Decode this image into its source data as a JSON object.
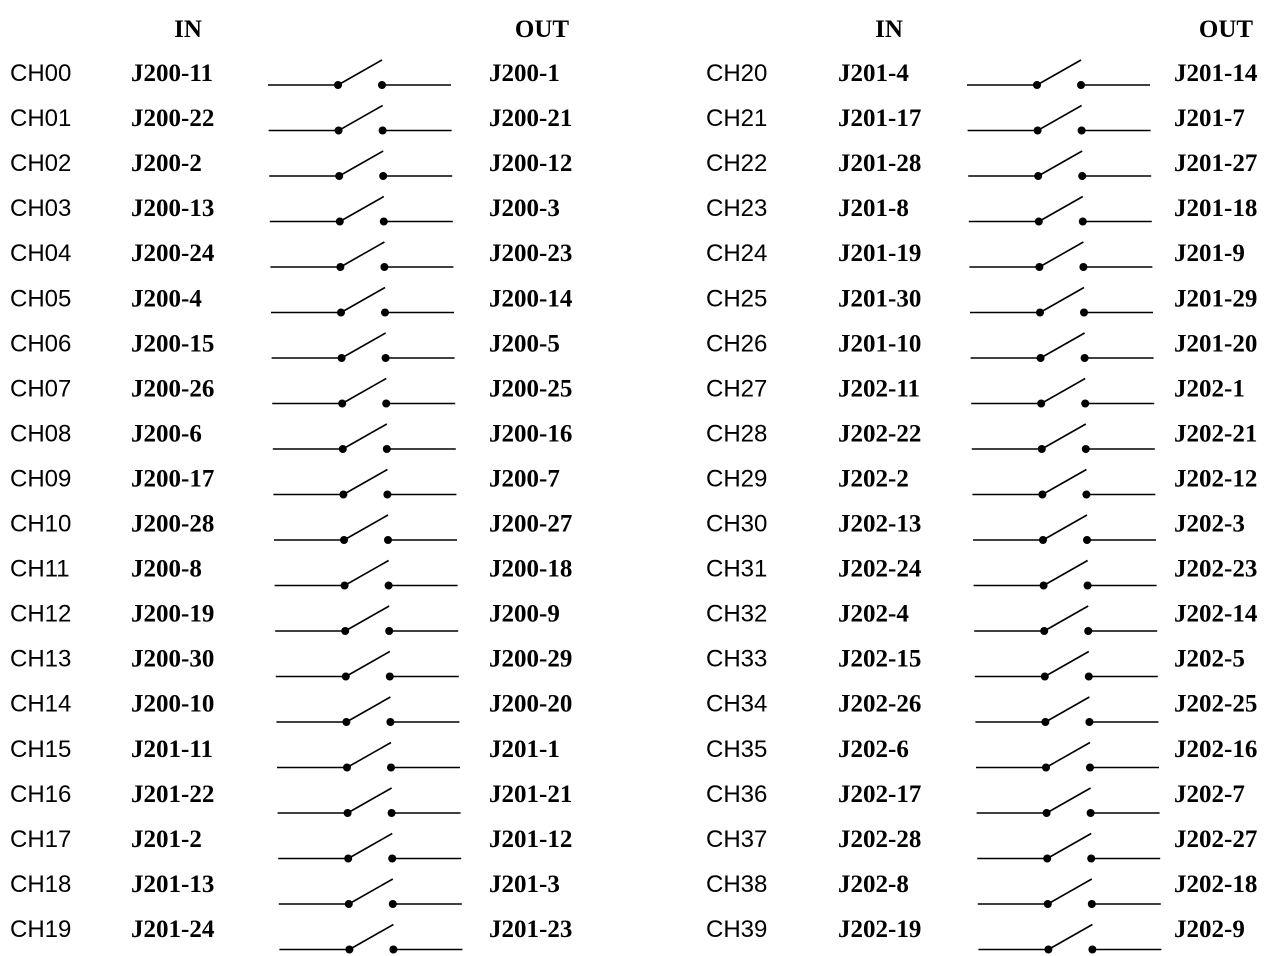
{
  "headers": {
    "in": "IN",
    "out": "OUT"
  },
  "blocks": [
    {
      "channels": [
        {
          "ch": "CH00",
          "in": "J200-11",
          "out": "J200-1"
        },
        {
          "ch": "CH01",
          "in": "J200-22",
          "out": "J200-21"
        },
        {
          "ch": "CH02",
          "in": "J200-2",
          "out": "J200-12"
        },
        {
          "ch": "CH03",
          "in": "J200-13",
          "out": "J200-3"
        },
        {
          "ch": "CH04",
          "in": "J200-24",
          "out": "J200-23"
        },
        {
          "ch": "CH05",
          "in": "J200-4",
          "out": "J200-14"
        },
        {
          "ch": "CH06",
          "in": "J200-15",
          "out": "J200-5"
        },
        {
          "ch": "CH07",
          "in": "J200-26",
          "out": "J200-25"
        },
        {
          "ch": "CH08",
          "in": "J200-6",
          "out": "J200-16"
        },
        {
          "ch": "CH09",
          "in": "J200-17",
          "out": "J200-7"
        },
        {
          "ch": "CH10",
          "in": "J200-28",
          "out": "J200-27"
        },
        {
          "ch": "CH11",
          "in": "J200-8",
          "out": "J200-18"
        },
        {
          "ch": "CH12",
          "in": "J200-19",
          "out": "J200-9"
        },
        {
          "ch": "CH13",
          "in": "J200-30",
          "out": "J200-29"
        },
        {
          "ch": "CH14",
          "in": "J200-10",
          "out": "J200-20"
        },
        {
          "ch": "CH15",
          "in": "J201-11",
          "out": "J201-1"
        },
        {
          "ch": "CH16",
          "in": "J201-22",
          "out": "J201-21"
        },
        {
          "ch": "CH17",
          "in": "J201-2",
          "out": "J201-12"
        },
        {
          "ch": "CH18",
          "in": "J201-13",
          "out": "J201-3"
        },
        {
          "ch": "CH19",
          "in": "J201-24",
          "out": "J201-23"
        }
      ]
    },
    {
      "channels": [
        {
          "ch": "CH20",
          "in": "J201-4",
          "out": "J201-14"
        },
        {
          "ch": "CH21",
          "in": "J201-17",
          "out": "J201-7"
        },
        {
          "ch": "CH22",
          "in": "J201-28",
          "out": "J201-27"
        },
        {
          "ch": "CH23",
          "in": "J201-8",
          "out": "J201-18"
        },
        {
          "ch": "CH24",
          "in": "J201-19",
          "out": "J201-9"
        },
        {
          "ch": "CH25",
          "in": "J201-30",
          "out": "J201-29"
        },
        {
          "ch": "CH26",
          "in": "J201-10",
          "out": "J201-20"
        },
        {
          "ch": "CH27",
          "in": "J202-11",
          "out": "J202-1"
        },
        {
          "ch": "CH28",
          "in": "J202-22",
          "out": "J202-21"
        },
        {
          "ch": "CH29",
          "in": "J202-2",
          "out": "J202-12"
        },
        {
          "ch": "CH30",
          "in": "J202-13",
          "out": "J202-3"
        },
        {
          "ch": "CH31",
          "in": "J202-24",
          "out": "J202-23"
        },
        {
          "ch": "CH32",
          "in": "J202-4",
          "out": "J202-14"
        },
        {
          "ch": "CH33",
          "in": "J202-15",
          "out": "J202-5"
        },
        {
          "ch": "CH34",
          "in": "J202-26",
          "out": "J202-25"
        },
        {
          "ch": "CH35",
          "in": "J202-6",
          "out": "J202-16"
        },
        {
          "ch": "CH36",
          "in": "J202-17",
          "out": "J202-7"
        },
        {
          "ch": "CH37",
          "in": "J202-28",
          "out": "J202-27"
        },
        {
          "ch": "CH38",
          "in": "J202-8",
          "out": "J202-18"
        },
        {
          "ch": "CH39",
          "in": "J202-19",
          "out": "J202-9"
        }
      ]
    }
  ]
}
